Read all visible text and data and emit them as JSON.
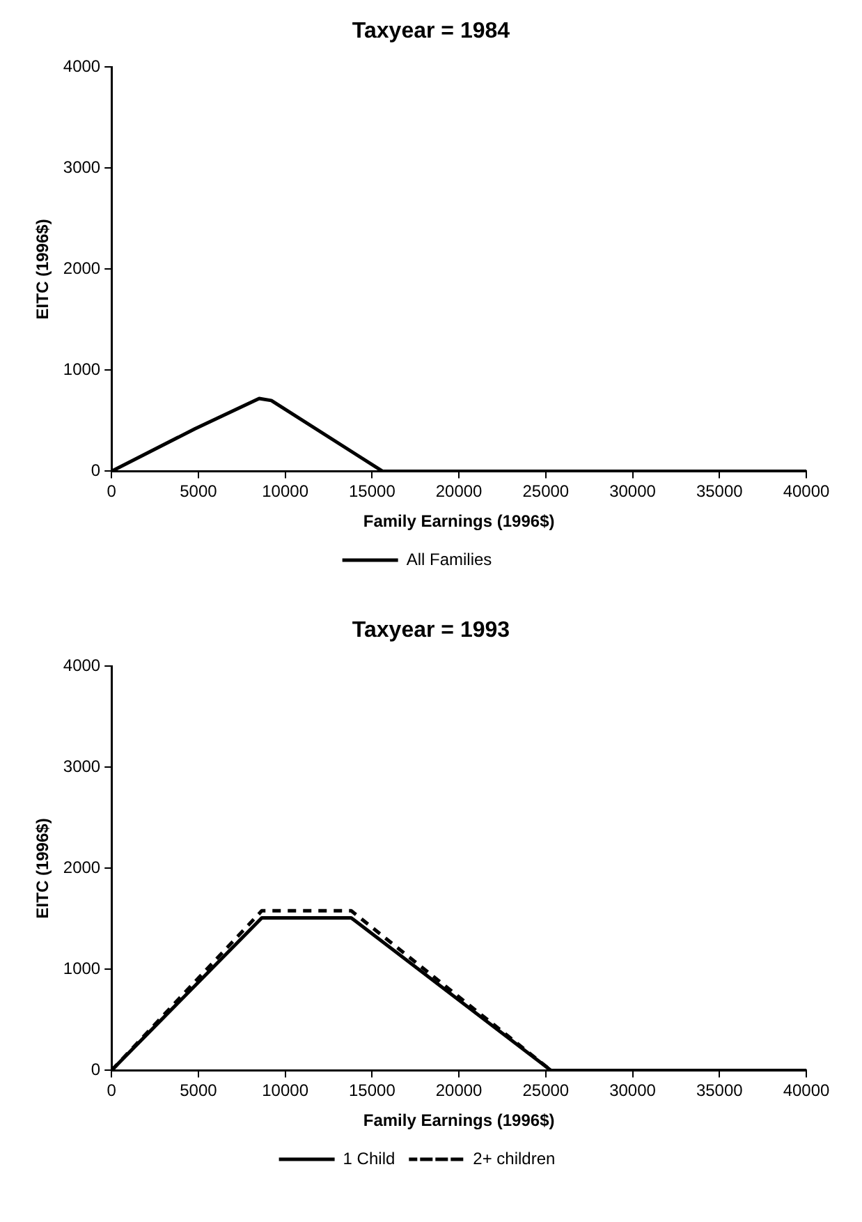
{
  "chart_data": [
    {
      "type": "line",
      "title": "Taxyear = 1984",
      "xlabel": "Family Earnings (1996$)",
      "ylabel": "EITC (1996$)",
      "xlim": [
        0,
        40000
      ],
      "xticks": [
        0,
        5000,
        10000,
        15000,
        20000,
        25000,
        30000,
        35000,
        40000
      ],
      "ylim": [
        0,
        4000
      ],
      "yticks": [
        0,
        1000,
        2000,
        3000,
        4000
      ],
      "grid": false,
      "legend": "bottom",
      "marker": "none",
      "series": [
        {
          "name": "All Families",
          "color": "#000000",
          "line_style": "solid",
          "x": [
            0,
            4800,
            8500,
            9200,
            15600,
            40000
          ],
          "values": [
            0,
            420,
            720,
            700,
            0,
            0
          ]
        }
      ]
    },
    {
      "type": "line",
      "title": "Taxyear = 1993",
      "xlabel": "Family Earnings (1996$)",
      "ylabel": "EITC (1996$)",
      "xlim": [
        0,
        40000
      ],
      "xticks": [
        0,
        5000,
        10000,
        15000,
        20000,
        25000,
        30000,
        35000,
        40000
      ],
      "ylim": [
        0,
        4000
      ],
      "yticks": [
        0,
        1000,
        2000,
        3000,
        4000
      ],
      "grid": false,
      "legend": "bottom",
      "marker": "none",
      "series": [
        {
          "name": "1 Child",
          "color": "#000000",
          "line_style": "solid",
          "x": [
            0,
            8650,
            13800,
            25300,
            40000
          ],
          "values": [
            0,
            1510,
            1510,
            0,
            0
          ]
        },
        {
          "name": "2+ children",
          "color": "#000000",
          "line_style": "dashed",
          "x": [
            0,
            8650,
            13800,
            25300,
            40000
          ],
          "values": [
            0,
            1580,
            1580,
            0,
            0
          ]
        }
      ]
    }
  ]
}
